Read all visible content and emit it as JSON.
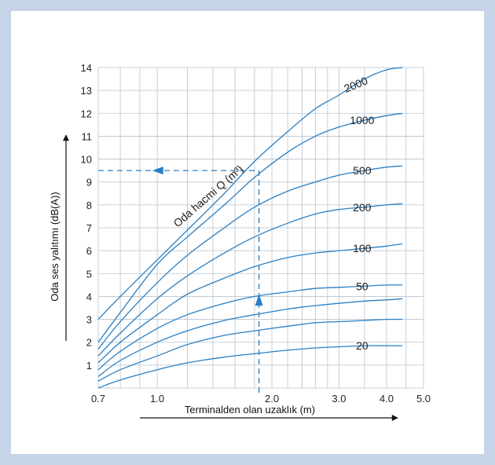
{
  "chart_data": {
    "type": "line",
    "xlabel": "Terminalden olan uzaklık (m)",
    "ylabel": "Oda ses yalıtımı (dB(A))",
    "curve_group_label": "Oda hacmi Q (m³)",
    "x_scale": "log",
    "xlim": [
      0.7,
      5.0
    ],
    "ylim": [
      0,
      14
    ],
    "x_tick_labels": [
      "0.7",
      "1.0",
      "2.0",
      "3.0",
      "4.0",
      "5.0"
    ],
    "x_ticks": [
      0.7,
      1.0,
      2.0,
      3.0,
      4.0,
      5.0
    ],
    "y_ticks": [
      1,
      2,
      3,
      4,
      5,
      6,
      7,
      8,
      9,
      10,
      11,
      12,
      13,
      14
    ],
    "grid": true,
    "series": [
      {
        "name": "2000",
        "x": [
          0.7,
          0.8,
          1.0,
          1.2,
          1.5,
          1.8,
          2.2,
          2.6,
          3.0,
          3.5,
          4.0,
          4.4
        ],
        "y": [
          3.0,
          4.0,
          5.6,
          6.9,
          8.5,
          9.9,
          11.2,
          12.2,
          12.8,
          13.5,
          13.9,
          14.0
        ]
      },
      {
        "name": "1000",
        "x": [
          0.7,
          0.8,
          1.0,
          1.2,
          1.5,
          1.8,
          2.2,
          2.6,
          3.0,
          3.5,
          4.0,
          4.4
        ],
        "y": [
          2.0,
          3.3,
          5.4,
          6.6,
          8.0,
          9.2,
          10.3,
          11.0,
          11.4,
          11.7,
          11.9,
          12.0
        ]
      },
      {
        "name": "500",
        "x": [
          0.7,
          0.8,
          1.0,
          1.2,
          1.5,
          1.8,
          2.2,
          2.6,
          3.0,
          3.5,
          4.0,
          4.4
        ],
        "y": [
          1.7,
          2.9,
          4.6,
          5.8,
          7.0,
          7.9,
          8.6,
          9.0,
          9.3,
          9.5,
          9.65,
          9.7
        ]
      },
      {
        "name": "200",
        "x": [
          0.7,
          0.8,
          1.0,
          1.2,
          1.5,
          1.8,
          2.2,
          2.6,
          3.0,
          3.5,
          4.0,
          4.4
        ],
        "y": [
          1.4,
          2.4,
          3.9,
          4.9,
          5.9,
          6.6,
          7.2,
          7.6,
          7.8,
          7.9,
          8.0,
          8.05
        ]
      },
      {
        "name": "100",
        "x": [
          0.7,
          0.8,
          1.0,
          1.2,
          1.5,
          1.8,
          2.2,
          2.6,
          3.0,
          3.5,
          4.0,
          4.4
        ],
        "y": [
          1.1,
          2.0,
          3.2,
          4.1,
          4.8,
          5.3,
          5.7,
          5.9,
          6.0,
          6.1,
          6.2,
          6.3
        ]
      },
      {
        "name": "50",
        "x": [
          0.7,
          0.8,
          1.0,
          1.2,
          1.5,
          1.8,
          2.2,
          2.6,
          3.0,
          3.5,
          4.0,
          4.4
        ],
        "y": [
          0.8,
          1.6,
          2.6,
          3.2,
          3.7,
          4.0,
          4.2,
          4.35,
          4.4,
          4.45,
          4.5,
          4.5
        ]
      },
      {
        "name": "",
        "x": [
          0.7,
          0.8,
          1.0,
          1.2,
          1.5,
          1.8,
          2.2,
          2.6,
          3.0,
          3.5,
          4.0,
          4.4
        ],
        "y": [
          0.5,
          1.2,
          2.0,
          2.5,
          2.95,
          3.2,
          3.45,
          3.6,
          3.7,
          3.8,
          3.85,
          3.9
        ]
      },
      {
        "name": "",
        "x": [
          0.7,
          0.8,
          1.0,
          1.2,
          1.5,
          1.8,
          2.2,
          2.6,
          3.0,
          3.5,
          4.0,
          4.4
        ],
        "y": [
          0.3,
          0.8,
          1.4,
          1.9,
          2.3,
          2.5,
          2.7,
          2.85,
          2.9,
          2.95,
          3.0,
          3.0
        ]
      },
      {
        "name": "20",
        "x": [
          0.7,
          0.8,
          1.0,
          1.2,
          1.5,
          1.8,
          2.2,
          2.6,
          3.0,
          3.5,
          4.0,
          4.4
        ],
        "y": [
          0.0,
          0.35,
          0.8,
          1.1,
          1.35,
          1.5,
          1.65,
          1.75,
          1.8,
          1.85,
          1.85,
          1.85
        ]
      }
    ],
    "example_path": {
      "x": 1.85,
      "y": 9.5
    }
  }
}
